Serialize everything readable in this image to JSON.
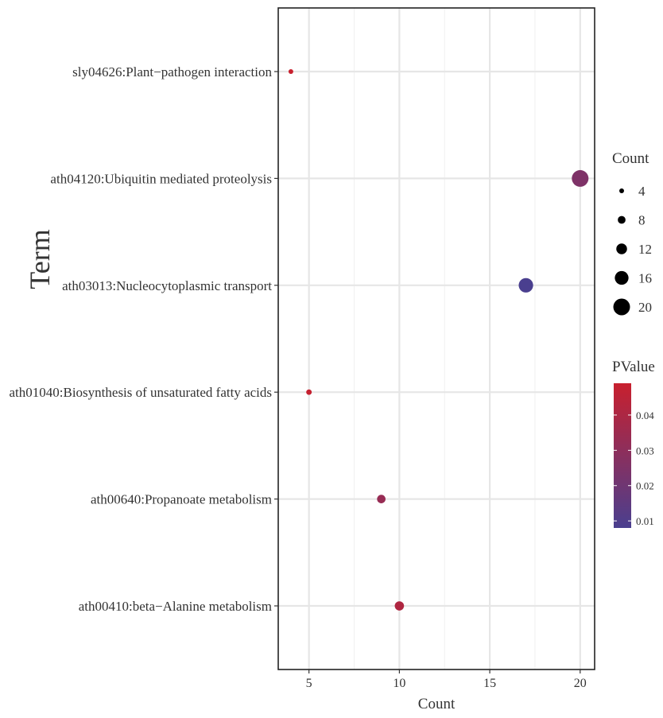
{
  "chart_data": {
    "type": "scatter",
    "xlabel": "Count",
    "ylabel": "Term",
    "xlim": [
      3.3,
      20.8
    ],
    "x_ticks": [
      5,
      10,
      15,
      20
    ],
    "grid": true,
    "points": [
      {
        "term": "sly04626:Plant−pathogen interaction",
        "count": 4,
        "pvalue": 0.049
      },
      {
        "term": "ath04120:Ubiquitin mediated proteolysis",
        "count": 20,
        "pvalue": 0.025
      },
      {
        "term": "ath03013:Nucleocytoplasmic transport",
        "count": 17,
        "pvalue": 0.008
      },
      {
        "term": "ath01040:Biosynthesis of unsaturated fatty acids",
        "count": 5,
        "pvalue": 0.048
      },
      {
        "term": "ath00640:Propanoate metabolism",
        "count": 9,
        "pvalue": 0.033
      },
      {
        "term": "ath00410:beta−Alanine metabolism",
        "count": 10,
        "pvalue": 0.041
      }
    ],
    "legend_size": {
      "title": "Count",
      "values": [
        4,
        8,
        12,
        16,
        20
      ],
      "placement": "right"
    },
    "legend_color": {
      "title": "PValue",
      "ticks": [
        0.01,
        0.02,
        0.03,
        0.04
      ],
      "range": [
        0.008,
        0.049
      ],
      "low_color": "#4a3f8f",
      "high_color": "#c8202e",
      "placement": "right"
    }
  }
}
